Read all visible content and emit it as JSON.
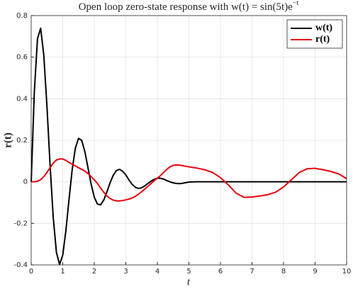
{
  "chart_data": {
    "type": "line",
    "title": "Open loop zero-state response with w(t) = sin(5t)e",
    "title_exponent": "−t",
    "x_label": "t",
    "y_label": "r(t)",
    "xlim": [
      0,
      10
    ],
    "ylim": [
      -0.4,
      0.8
    ],
    "xticks": [
      0,
      1,
      2,
      3,
      4,
      5,
      6,
      7,
      8,
      9,
      10
    ],
    "yticks": [
      -0.4,
      -0.2,
      0,
      0.2,
      0.4,
      0.6,
      0.8
    ],
    "grid": true,
    "legend": "northeast",
    "x": [
      0,
      0.1,
      0.2,
      0.3,
      0.4,
      0.5,
      0.6,
      0.7,
      0.8,
      0.9,
      1.0,
      1.1,
      1.2,
      1.3,
      1.4,
      1.5,
      1.6,
      1.7,
      1.8,
      1.9,
      2.0,
      2.1,
      2.2,
      2.3,
      2.4,
      2.5,
      2.6,
      2.7,
      2.8,
      2.9,
      3.0,
      3.1,
      3.2,
      3.3,
      3.4,
      3.5,
      3.6,
      3.7,
      3.8,
      3.9,
      4.0,
      4.1,
      4.2,
      4.3,
      4.4,
      4.5,
      4.6,
      4.7,
      4.8,
      4.9,
      5.0,
      5.25,
      5.5,
      5.75,
      6.0,
      6.25,
      6.5,
      6.75,
      7.0,
      7.25,
      7.5,
      7.75,
      8.0,
      8.25,
      8.5,
      8.75,
      9.0,
      9.25,
      9.5,
      9.75,
      10
    ],
    "series": [
      {
        "name": "w(t)",
        "color": "#000000",
        "values": [
          0,
          0.434,
          0.689,
          0.739,
          0.609,
          0.363,
          0.077,
          -0.174,
          -0.34,
          -0.398,
          -0.353,
          -0.235,
          -0.084,
          0.059,
          0.162,
          0.209,
          0.2,
          0.146,
          0.068,
          -0.011,
          -0.074,
          -0.107,
          -0.111,
          -0.088,
          -0.049,
          -0.005,
          0.031,
          0.054,
          0.06,
          0.051,
          0.033,
          0.009,
          -0.012,
          -0.026,
          -0.032,
          -0.029,
          -0.02,
          -0.008,
          0.003,
          0.012,
          0.017,
          0.017,
          0.013,
          0.006,
          0,
          -0.005,
          -0.008,
          -0.009,
          -0.007,
          -0.004,
          -0.001,
          0,
          0,
          0,
          0,
          0,
          0,
          0,
          0,
          0,
          0,
          0,
          0,
          0,
          0,
          0,
          0,
          0,
          0,
          0,
          0
        ]
      },
      {
        "name": "r(t)",
        "color": "#e8000b",
        "values": [
          0,
          0,
          0.003,
          0.01,
          0.025,
          0.045,
          0.068,
          0.09,
          0.105,
          0.11,
          0.11,
          0.103,
          0.093,
          0.085,
          0.077,
          0.068,
          0.06,
          0.052,
          0.04,
          0.025,
          0.01,
          -0.008,
          -0.03,
          -0.05,
          -0.068,
          -0.08,
          -0.088,
          -0.092,
          -0.092,
          -0.09,
          -0.087,
          -0.083,
          -0.078,
          -0.07,
          -0.06,
          -0.048,
          -0.035,
          -0.022,
          -0.008,
          0.005,
          0.018,
          0.03,
          0.045,
          0.06,
          0.072,
          0.079,
          0.081,
          0.08,
          0.078,
          0.075,
          0.072,
          0.066,
          0.058,
          0.045,
          0.02,
          -0.015,
          -0.055,
          -0.075,
          -0.073,
          -0.068,
          -0.062,
          -0.05,
          -0.025,
          0.01,
          0.045,
          0.063,
          0.065,
          0.058,
          0.05,
          0.038,
          0.015
        ]
      }
    ]
  }
}
